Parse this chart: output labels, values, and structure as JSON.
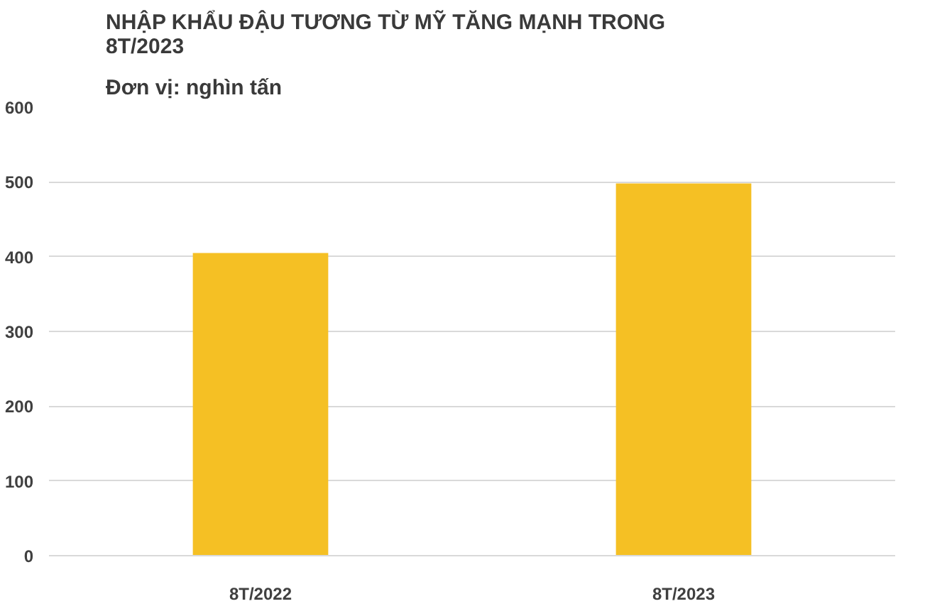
{
  "chart_data": {
    "type": "bar",
    "title": "NHẬP KHẨU ĐẬU TƯƠNG TỪ MỸ TĂNG MẠNH TRONG\n8T/2023",
    "subtitle": "Đơn vị: nghìn tấn",
    "categories": [
      "8T/2022",
      "8T/2023"
    ],
    "values": [
      405,
      498
    ],
    "color": "#f5c024",
    "ylim": [
      0,
      600
    ],
    "yticks": [
      0,
      100,
      200,
      300,
      400,
      500,
      600
    ],
    "grid": "y"
  }
}
